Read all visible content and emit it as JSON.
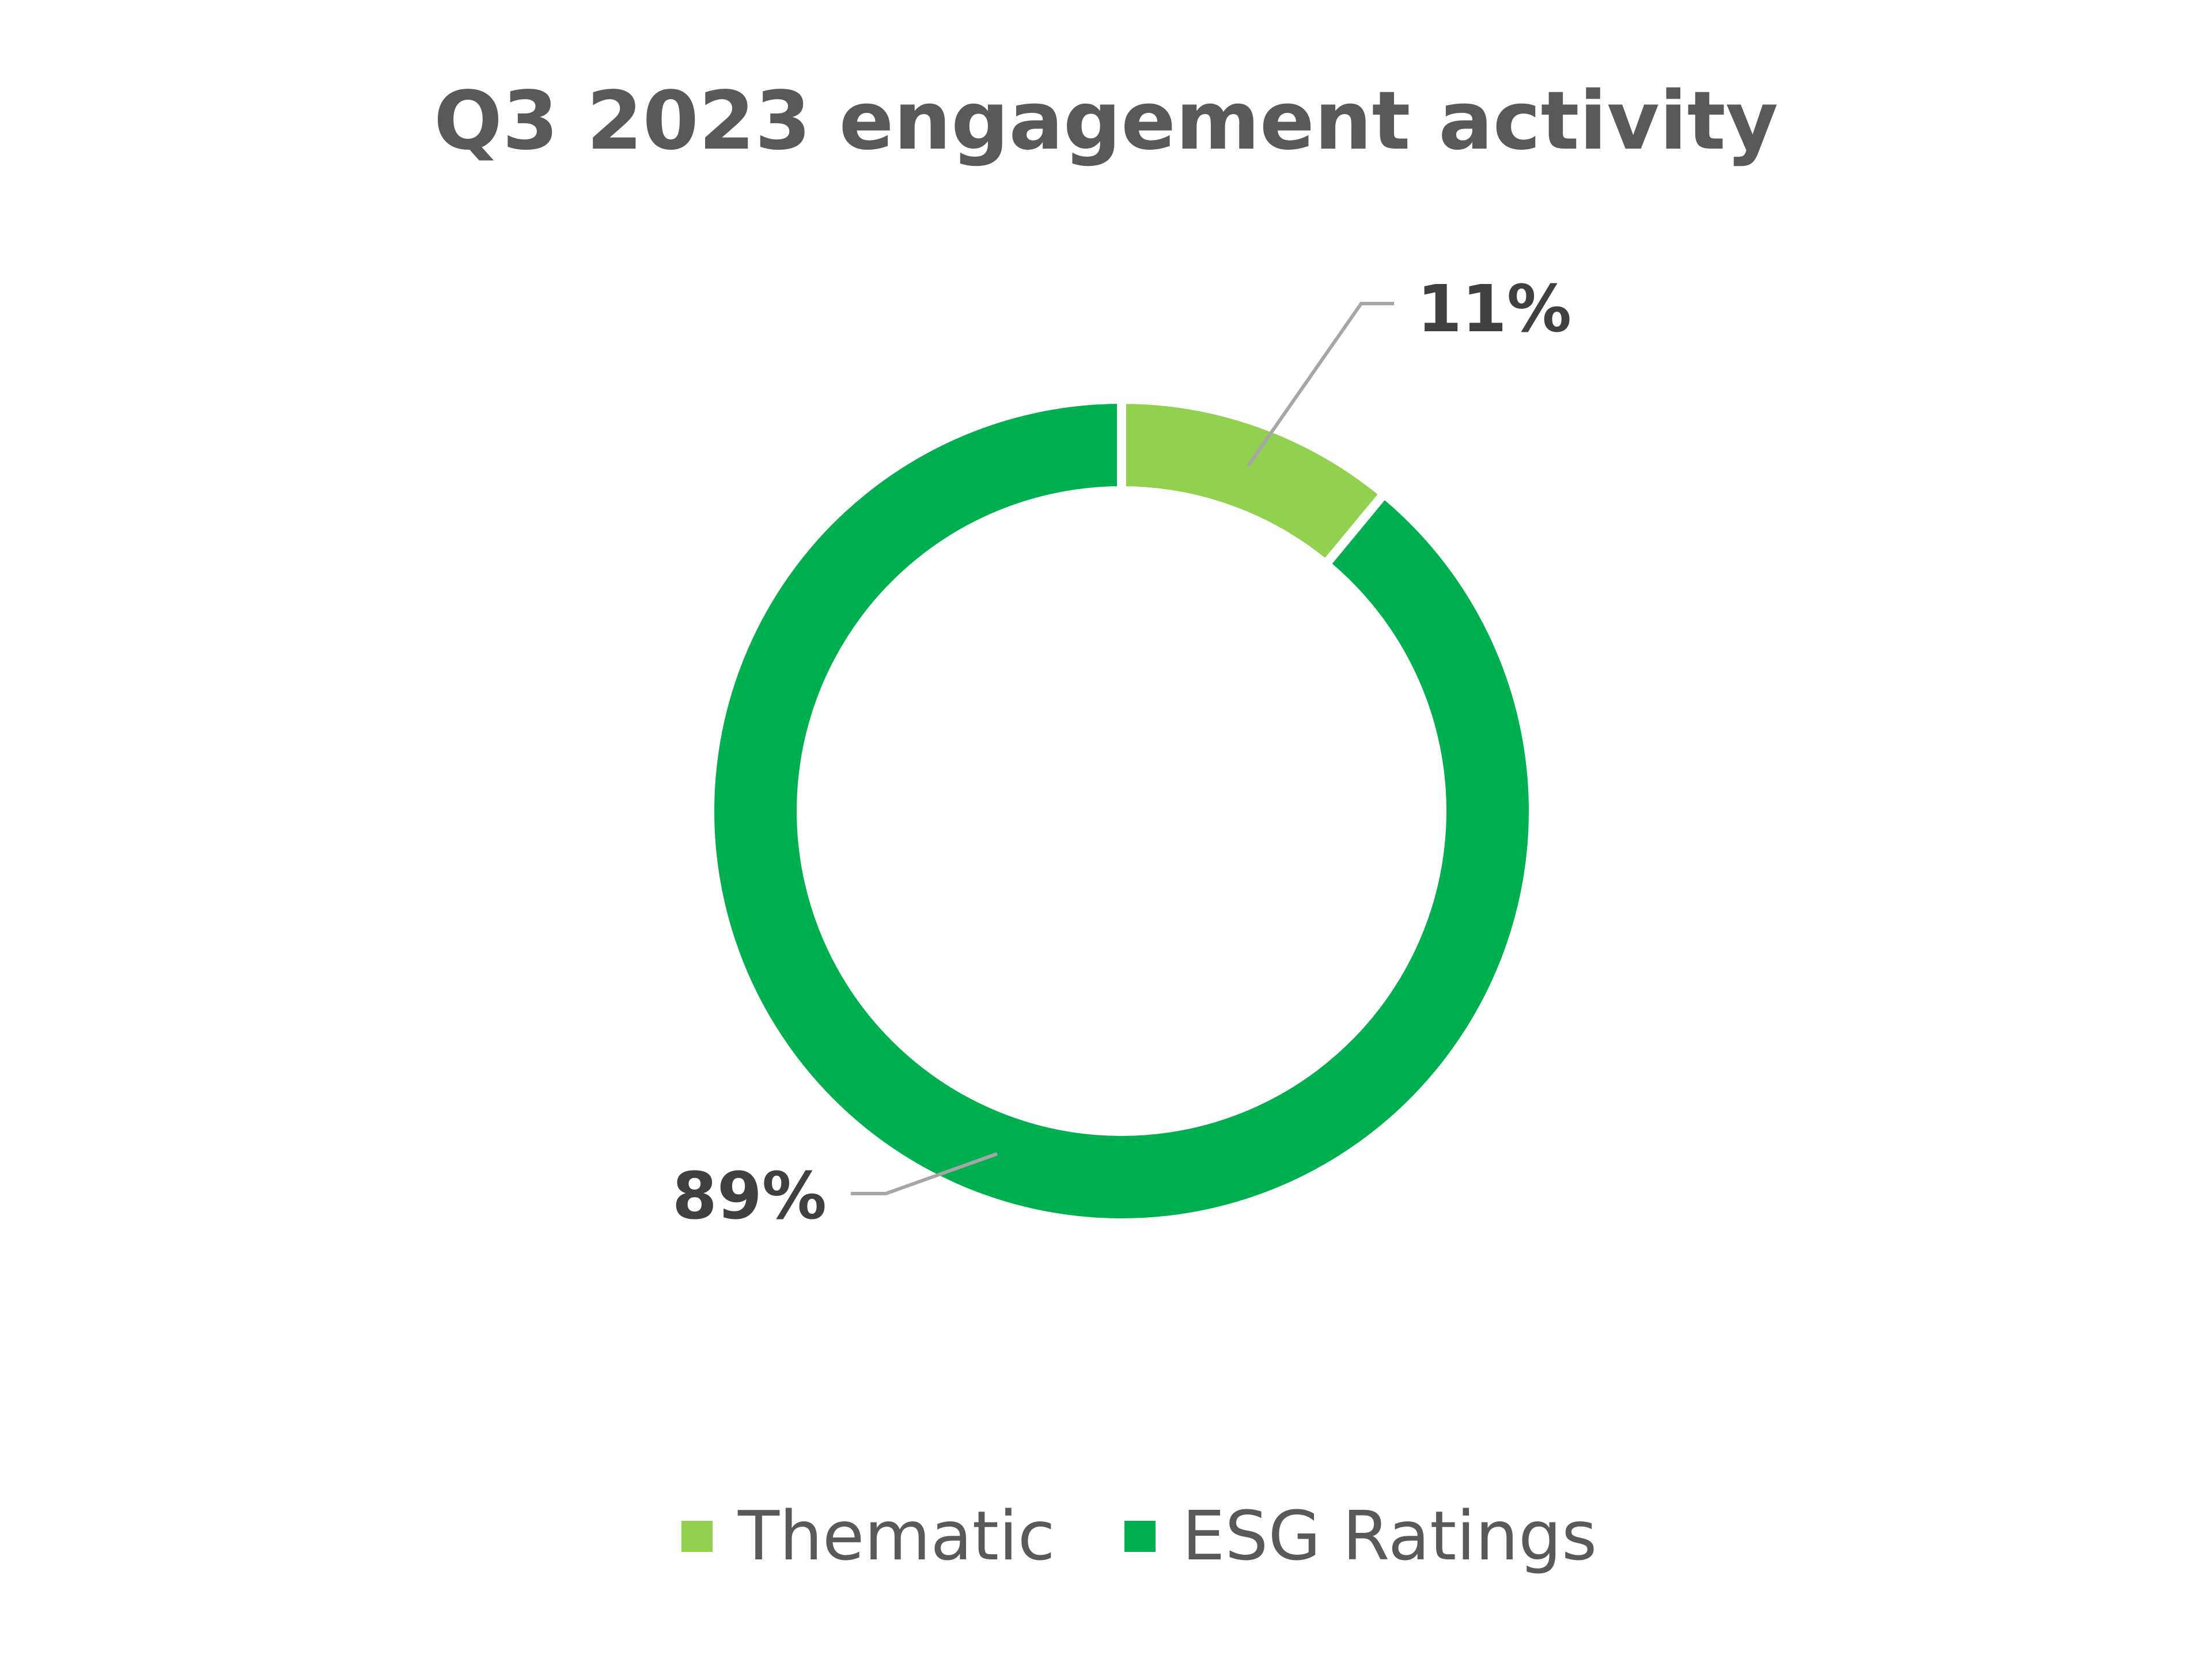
{
  "chart_data": {
    "type": "pie",
    "variant": "donut",
    "title": "Q3 2023 engagement activity",
    "categories": [
      "Thematic",
      "ESG Ratings"
    ],
    "values": [
      11,
      89
    ],
    "data_labels": [
      "11%",
      "89%"
    ],
    "colors": [
      "#92D050",
      "#00B050"
    ],
    "legend": {
      "placement": "bottom",
      "entries": [
        "Thematic",
        "ESG Ratings"
      ]
    },
    "start_angle_deg": 0,
    "direction": "clockwise"
  }
}
